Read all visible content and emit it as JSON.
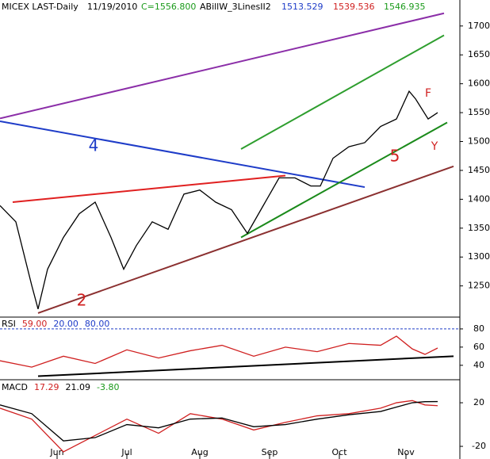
{
  "header": {
    "symbol": "MICEX LAST-Daily",
    "date": "11/19/2010",
    "close": "C=1556.800",
    "indicator": "ABillW_3LinesII2",
    "v1": "1513.529",
    "v2": "1539.536",
    "v3": "1546.935"
  },
  "chart_data": [
    {
      "type": "line",
      "xlim": [
        0,
        145
      ],
      "ylim": [
        1196,
        1745
      ],
      "yticks": [
        1250,
        1300,
        1350,
        1400,
        1450,
        1500,
        1550,
        1600,
        1650,
        1700
      ],
      "xticks": [
        {
          "value": 18,
          "label": "Jun"
        },
        {
          "value": 40,
          "label": "Jul"
        },
        {
          "value": 63,
          "label": "Aug"
        },
        {
          "value": 85,
          "label": "Sep"
        },
        {
          "value": 107,
          "label": "Oct"
        },
        {
          "value": 128,
          "label": "Nov"
        }
      ],
      "x": [
        0,
        5,
        10,
        12,
        15,
        20,
        25,
        30,
        35,
        39,
        43,
        48,
        53,
        58,
        63,
        68,
        73,
        78,
        83,
        88,
        93,
        98,
        101,
        105,
        110,
        115,
        120,
        125,
        129,
        131,
        135,
        138
      ],
      "series": [
        {
          "color": "#000000",
          "values": [
            1389,
            1361,
            1251,
            1210,
            1279,
            1334,
            1375,
            1395,
            1334,
            1279,
            1320,
            1361,
            1348,
            1409,
            1416,
            1395,
            1382,
            1341,
            1389,
            1437,
            1437,
            1423,
            1423,
            1471,
            1491,
            1498,
            1526,
            1539,
            1587,
            1574,
            1539,
            1550
          ]
        }
      ],
      "trendlines": [
        {
          "color": "#8b2ea8",
          "x": [
            0,
            140
          ],
          "values": [
            1540,
            1722
          ]
        },
        {
          "color": "#2e9e2e",
          "x": [
            76,
            140
          ],
          "values": [
            1487,
            1684
          ]
        },
        {
          "color": "#1e3cc8",
          "x": [
            0,
            115
          ],
          "values": [
            1535,
            1421
          ]
        },
        {
          "color": "#e02020",
          "x": [
            4,
            90
          ],
          "values": [
            1395,
            1441
          ]
        },
        {
          "color": "#8b3030",
          "x": [
            12,
            143
          ],
          "values": [
            1203,
            1457
          ]
        },
        {
          "color": "#1a8a1a",
          "x": [
            76,
            141
          ],
          "values": [
            1334,
            1533
          ]
        }
      ],
      "annotations": [
        "4",
        "2",
        "5",
        "F",
        "Y"
      ]
    },
    {
      "type": "line",
      "xlim": [
        0,
        145
      ],
      "ylim": [
        25,
        93
      ],
      "yticks": [
        40,
        60,
        80
      ],
      "labels": [
        "RSI",
        "59.00",
        "20.00",
        "80.00"
      ],
      "level": 80,
      "x": [
        0,
        10,
        20,
        30,
        40,
        50,
        60,
        70,
        80,
        90,
        100,
        110,
        120,
        125,
        130,
        134,
        138
      ],
      "series": [
        {
          "color": "#d02020",
          "values": [
            45,
            38,
            50,
            42,
            57,
            48,
            56,
            62,
            50,
            60,
            55,
            64,
            62,
            72,
            58,
            52,
            59
          ]
        }
      ],
      "trendlines": [
        {
          "color": "#000000",
          "x": [
            12,
            143
          ],
          "values": [
            28,
            50
          ]
        }
      ]
    },
    {
      "type": "line",
      "xlim": [
        0,
        145
      ],
      "ylim": [
        -31.6,
        40.4
      ],
      "yticks": [
        -20,
        20
      ],
      "labels": [
        "MACD",
        "17.29",
        "21.09",
        "-3.80"
      ],
      "x": [
        0,
        10,
        20,
        30,
        40,
        50,
        60,
        70,
        80,
        90,
        100,
        110,
        120,
        125,
        130,
        134,
        138
      ],
      "series": [
        {
          "color": "#d02020",
          "values": [
            15,
            5,
            -25,
            -10,
            5,
            -8,
            10,
            5,
            -5,
            2,
            8,
            10,
            15,
            20,
            22,
            18,
            17.29
          ]
        },
        {
          "color": "#000000",
          "values": [
            18,
            10,
            -15,
            -12,
            0,
            -3,
            5,
            6,
            -2,
            0,
            5,
            9,
            12,
            16,
            20,
            21,
            21.09
          ]
        }
      ],
      "trendlines": []
    }
  ]
}
